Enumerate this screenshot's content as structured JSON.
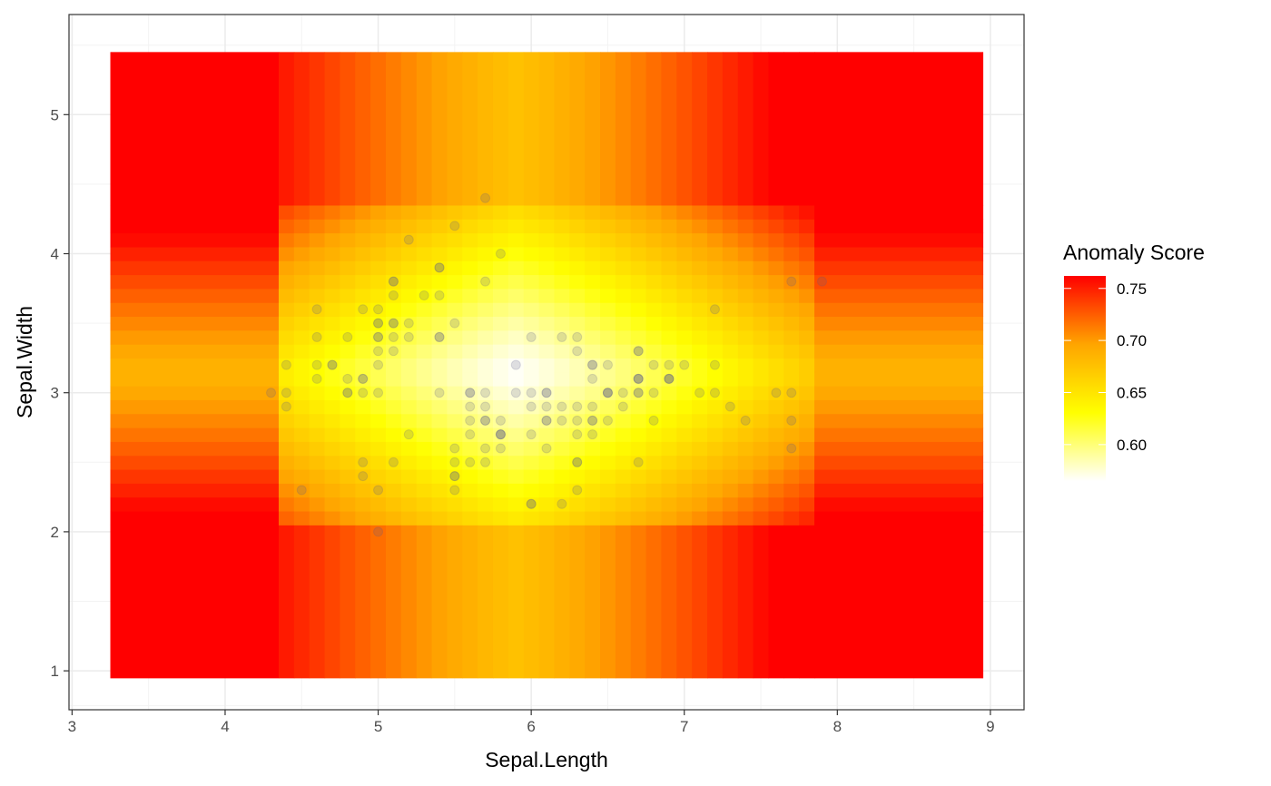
{
  "chart_data": {
    "type": "heatmap",
    "title": "",
    "xlabel": "Sepal.Length",
    "ylabel": "Sepal.Width",
    "xlim": [
      2.98,
      9.22
    ],
    "ylim": [
      0.72,
      5.72
    ],
    "x_ticks": [
      3,
      4,
      5,
      6,
      7,
      8,
      9
    ],
    "y_ticks": [
      1,
      2,
      3,
      4,
      5
    ],
    "x_tick_labels": [
      "3",
      "4",
      "5",
      "6",
      "7",
      "8",
      "9"
    ],
    "y_tick_labels": [
      "1",
      "2",
      "3",
      "4",
      "5"
    ],
    "grid": true,
    "heatmap_extent": {
      "x": [
        3.25,
        8.95
      ],
      "y": [
        0.95,
        5.45
      ]
    },
    "x_breaks": [
      4.35,
      4.45,
      4.55,
      4.65,
      4.75,
      4.85,
      4.95,
      5.05,
      5.15,
      5.25,
      5.35,
      5.45,
      5.55,
      5.65,
      5.75,
      5.85,
      5.95,
      6.05,
      6.15,
      6.25,
      6.35,
      6.45,
      6.55,
      6.65,
      6.75,
      6.85,
      6.95,
      7.05,
      7.15,
      7.25,
      7.35,
      7.45,
      7.55,
      7.65,
      7.75,
      7.85
    ],
    "x_inner_center": 5.9,
    "y_breaks": [
      2.05,
      2.15,
      2.25,
      2.35,
      2.45,
      2.55,
      2.65,
      2.75,
      2.85,
      2.95,
      3.05,
      3.15,
      3.25,
      3.35,
      3.45,
      3.55,
      3.65,
      3.75,
      3.85,
      3.95,
      4.05,
      4.15,
      4.25,
      4.35
    ],
    "y_inner_center": 3.15,
    "legend": {
      "title": "Anomaly Score",
      "position": "right",
      "range": [
        0.565,
        0.762
      ],
      "breaks": [
        0.6,
        0.65,
        0.7,
        0.75
      ],
      "labels": [
        "0.60",
        "0.65",
        "0.70",
        "0.75"
      ],
      "colors": [
        "#FFFFFF",
        "#FFFF00",
        "#FFA500",
        "#FF0000"
      ]
    },
    "point_color": "#5b5b8a",
    "points": [
      [
        4.3,
        3.0
      ],
      [
        4.4,
        3.2
      ],
      [
        4.4,
        3.0
      ],
      [
        4.4,
        2.9
      ],
      [
        4.5,
        2.3
      ],
      [
        4.6,
        3.6
      ],
      [
        4.6,
        3.4
      ],
      [
        4.6,
        3.2
      ],
      [
        4.6,
        3.1
      ],
      [
        4.7,
        3.2
      ],
      [
        4.7,
        3.2
      ],
      [
        4.8,
        3.4
      ],
      [
        4.8,
        3.1
      ],
      [
        4.8,
        3.0
      ],
      [
        4.8,
        3.0
      ],
      [
        4.9,
        3.6
      ],
      [
        4.9,
        3.1
      ],
      [
        4.9,
        3.1
      ],
      [
        4.9,
        3.0
      ],
      [
        4.9,
        2.5
      ],
      [
        4.9,
        2.4
      ],
      [
        5.0,
        3.6
      ],
      [
        5.0,
        3.5
      ],
      [
        5.0,
        3.5
      ],
      [
        5.0,
        3.4
      ],
      [
        5.0,
        3.4
      ],
      [
        5.0,
        3.3
      ],
      [
        5.0,
        3.2
      ],
      [
        5.0,
        3.0
      ],
      [
        5.0,
        2.3
      ],
      [
        5.0,
        2.0
      ],
      [
        5.1,
        3.8
      ],
      [
        5.1,
        3.8
      ],
      [
        5.1,
        3.7
      ],
      [
        5.1,
        3.5
      ],
      [
        5.1,
        3.5
      ],
      [
        5.1,
        3.4
      ],
      [
        5.1,
        3.3
      ],
      [
        5.1,
        2.5
      ],
      [
        5.2,
        4.1
      ],
      [
        5.2,
        3.5
      ],
      [
        5.2,
        3.4
      ],
      [
        5.2,
        2.7
      ],
      [
        5.3,
        3.7
      ],
      [
        5.4,
        3.9
      ],
      [
        5.4,
        3.9
      ],
      [
        5.4,
        3.7
      ],
      [
        5.4,
        3.4
      ],
      [
        5.4,
        3.4
      ],
      [
        5.4,
        3.0
      ],
      [
        5.5,
        4.2
      ],
      [
        5.5,
        3.5
      ],
      [
        5.5,
        2.6
      ],
      [
        5.5,
        2.5
      ],
      [
        5.5,
        2.4
      ],
      [
        5.5,
        2.4
      ],
      [
        5.5,
        2.3
      ],
      [
        5.6,
        3.0
      ],
      [
        5.6,
        3.0
      ],
      [
        5.6,
        2.9
      ],
      [
        5.6,
        2.8
      ],
      [
        5.6,
        2.7
      ],
      [
        5.6,
        2.5
      ],
      [
        5.7,
        4.4
      ],
      [
        5.7,
        3.8
      ],
      [
        5.7,
        3.0
      ],
      [
        5.7,
        2.9
      ],
      [
        5.7,
        2.8
      ],
      [
        5.7,
        2.8
      ],
      [
        5.7,
        2.6
      ],
      [
        5.7,
        2.5
      ],
      [
        5.8,
        4.0
      ],
      [
        5.8,
        2.8
      ],
      [
        5.8,
        2.7
      ],
      [
        5.8,
        2.7
      ],
      [
        5.8,
        2.7
      ],
      [
        5.8,
        2.6
      ],
      [
        5.9,
        3.2
      ],
      [
        5.9,
        3.0
      ],
      [
        6.0,
        3.4
      ],
      [
        6.0,
        3.0
      ],
      [
        6.0,
        2.9
      ],
      [
        6.0,
        2.7
      ],
      [
        6.0,
        2.2
      ],
      [
        6.0,
        2.2
      ],
      [
        6.1,
        3.0
      ],
      [
        6.1,
        3.0
      ],
      [
        6.1,
        2.9
      ],
      [
        6.1,
        2.8
      ],
      [
        6.1,
        2.8
      ],
      [
        6.1,
        2.6
      ],
      [
        6.2,
        3.4
      ],
      [
        6.2,
        2.9
      ],
      [
        6.2,
        2.8
      ],
      [
        6.2,
        2.2
      ],
      [
        6.3,
        3.4
      ],
      [
        6.3,
        3.3
      ],
      [
        6.3,
        2.9
      ],
      [
        6.3,
        2.8
      ],
      [
        6.3,
        2.7
      ],
      [
        6.3,
        2.5
      ],
      [
        6.3,
        2.5
      ],
      [
        6.3,
        2.3
      ],
      [
        6.4,
        3.2
      ],
      [
        6.4,
        3.2
      ],
      [
        6.4,
        3.1
      ],
      [
        6.4,
        2.9
      ],
      [
        6.4,
        2.8
      ],
      [
        6.4,
        2.8
      ],
      [
        6.4,
        2.7
      ],
      [
        6.5,
        3.2
      ],
      [
        6.5,
        3.0
      ],
      [
        6.5,
        3.0
      ],
      [
        6.5,
        3.0
      ],
      [
        6.5,
        2.8
      ],
      [
        6.6,
        3.0
      ],
      [
        6.6,
        2.9
      ],
      [
        6.7,
        3.3
      ],
      [
        6.7,
        3.3
      ],
      [
        6.7,
        3.1
      ],
      [
        6.7,
        3.1
      ],
      [
        6.7,
        3.1
      ],
      [
        6.7,
        3.0
      ],
      [
        6.7,
        3.0
      ],
      [
        6.7,
        2.5
      ],
      [
        6.8,
        3.2
      ],
      [
        6.8,
        3.0
      ],
      [
        6.8,
        2.8
      ],
      [
        6.9,
        3.2
      ],
      [
        6.9,
        3.1
      ],
      [
        6.9,
        3.1
      ],
      [
        6.9,
        3.1
      ],
      [
        7.0,
        3.2
      ],
      [
        7.1,
        3.0
      ],
      [
        7.2,
        3.6
      ],
      [
        7.2,
        3.2
      ],
      [
        7.2,
        3.0
      ],
      [
        7.3,
        2.9
      ],
      [
        7.4,
        2.8
      ],
      [
        7.6,
        3.0
      ],
      [
        7.7,
        3.8
      ],
      [
        7.7,
        3.0
      ],
      [
        7.7,
        2.8
      ],
      [
        7.7,
        2.6
      ],
      [
        7.9,
        3.8
      ]
    ]
  }
}
